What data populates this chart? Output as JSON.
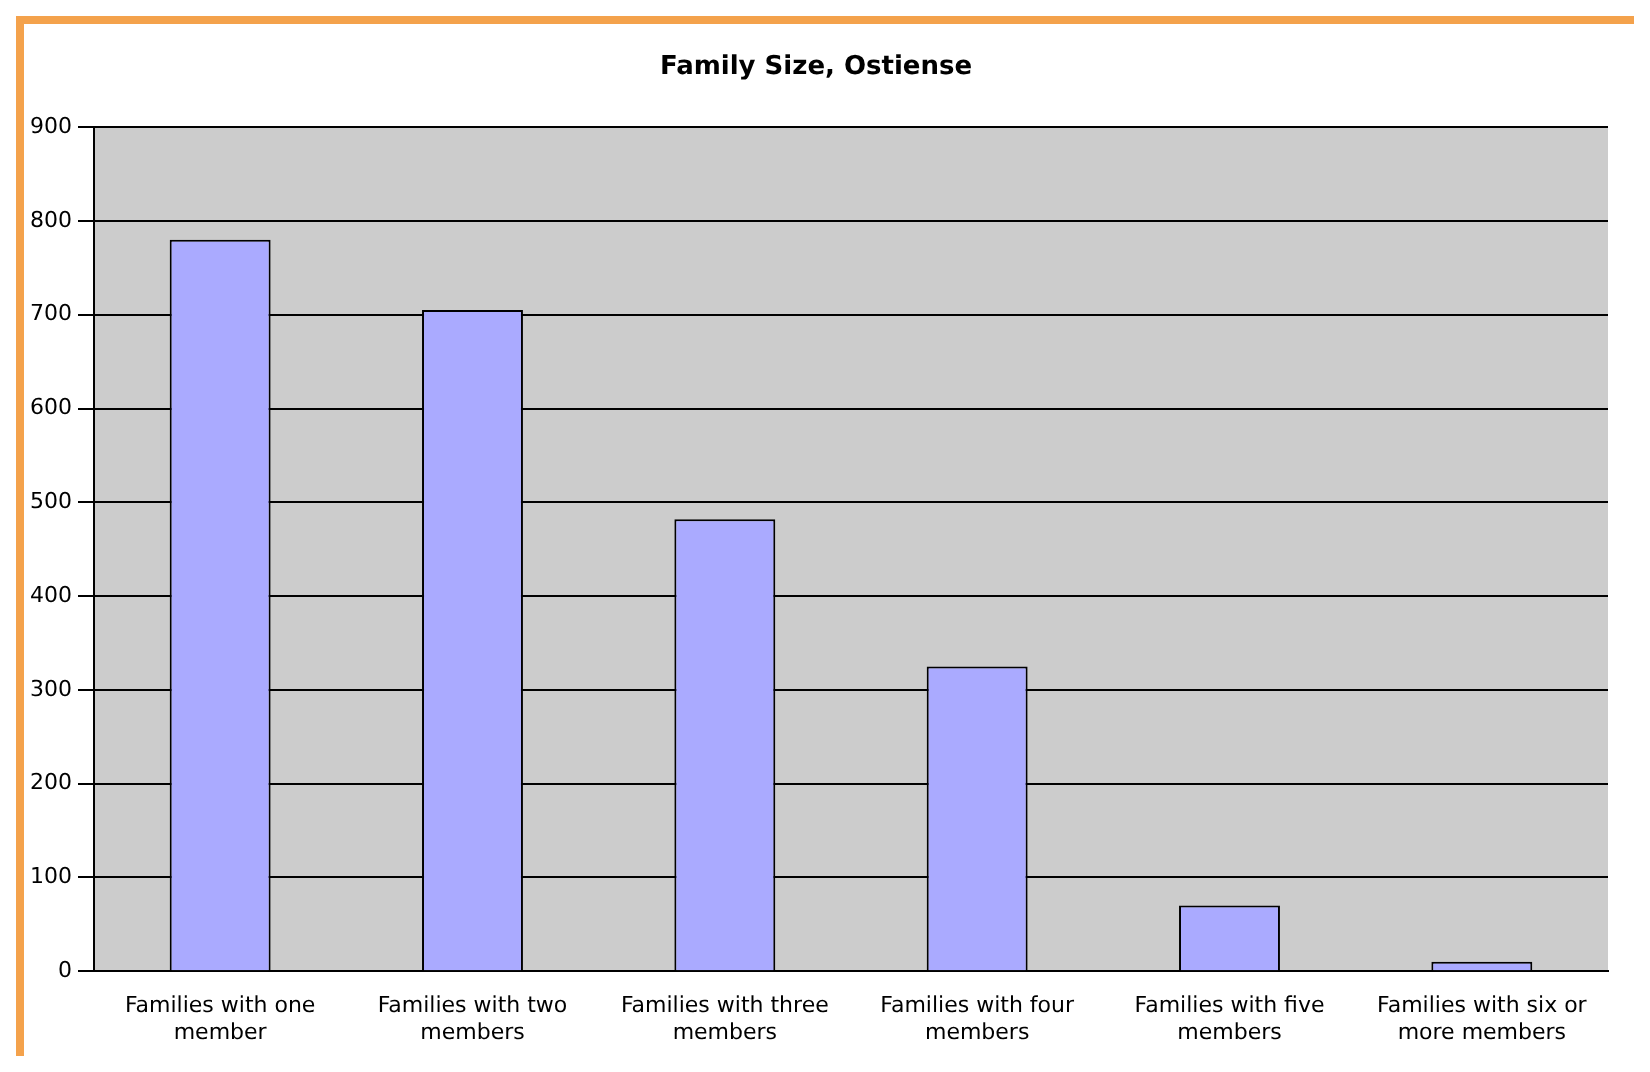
{
  "chart_data": {
    "type": "bar",
    "title": "Family Size, Ostiense",
    "categories": [
      "Families with one member",
      "Families with two members",
      "Families with three members",
      "Families with four members",
      "Families with five members",
      "Families with six or more members"
    ],
    "values": [
      780,
      705,
      482,
      325,
      70,
      10
    ],
    "color": "#aaaaff",
    "ylim": [
      0,
      900
    ],
    "yticks": [
      0,
      100,
      200,
      300,
      400,
      500,
      600,
      700,
      800,
      900
    ],
    "grid": "y",
    "legend": false
  }
}
